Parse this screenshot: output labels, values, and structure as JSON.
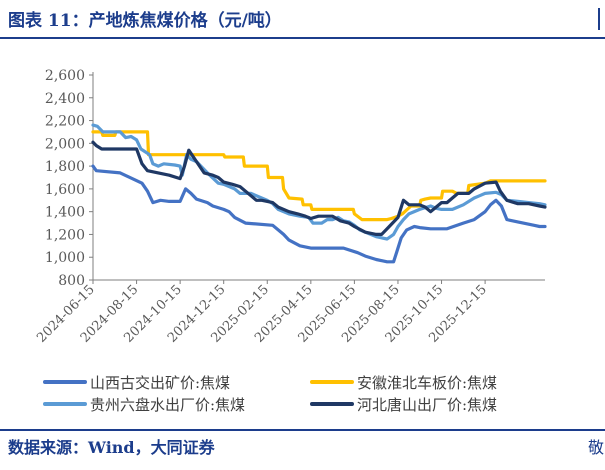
{
  "header": {
    "title": "图表 11：产地炼焦煤价格（元/吨）"
  },
  "footer": {
    "source": "数据来源：Wind，大同证券",
    "edge_char": "敬"
  },
  "chart_data": {
    "type": "line",
    "title": "产地炼焦煤价格（元/吨）",
    "ylim": [
      800,
      2600
    ],
    "yticks": [
      800,
      1000,
      1200,
      1400,
      1600,
      1800,
      2000,
      2200,
      2400,
      2600
    ],
    "ytick_labels": [
      "800",
      "1,000",
      "1,200",
      "1,400",
      "1,600",
      "1,800",
      "2,000",
      "2,200",
      "2,400",
      "2,600"
    ],
    "xlim": [
      0,
      40
    ],
    "xticks": [
      0,
      4,
      8,
      12,
      16,
      20,
      24,
      28,
      32,
      36
    ],
    "xtick_labels": [
      "2024-06-15",
      "2024-08-15",
      "2024-10-15",
      "2024-12-15",
      "2025-02-15",
      "2025-04-15",
      "2025-06-15",
      "2025-08-15",
      "2025-10-15",
      "2025-12-15"
    ],
    "colors": {
      "shanxi": "#4472c4",
      "anhui": "#ffc000",
      "guizhou": "#5b9bd5",
      "hebei": "#1f3864",
      "axis": "#7f7f7f",
      "text": "#595959"
    },
    "series": [
      {
        "key": "shanxi",
        "name": "山西古交出矿价:焦煤",
        "color": "#4472c4",
        "points": [
          [
            0,
            1800
          ],
          [
            0.3,
            1760
          ],
          [
            2.5,
            1740
          ],
          [
            4.5,
            1650
          ],
          [
            5,
            1580
          ],
          [
            5.5,
            1480
          ],
          [
            6.2,
            1500
          ],
          [
            7,
            1490
          ],
          [
            8,
            1490
          ],
          [
            8.5,
            1600
          ],
          [
            9,
            1560
          ],
          [
            9.5,
            1510
          ],
          [
            10.5,
            1480
          ],
          [
            11,
            1450
          ],
          [
            12,
            1420
          ],
          [
            12.5,
            1400
          ],
          [
            13,
            1350
          ],
          [
            14,
            1300
          ],
          [
            16.5,
            1280
          ],
          [
            17.5,
            1200
          ],
          [
            18,
            1150
          ],
          [
            19,
            1100
          ],
          [
            20,
            1080
          ],
          [
            22,
            1080
          ],
          [
            23,
            1080
          ],
          [
            24.3,
            1040
          ],
          [
            25,
            1010
          ],
          [
            26,
            980
          ],
          [
            27,
            960
          ],
          [
            27.6,
            960
          ],
          [
            27.9,
            1050
          ],
          [
            28.3,
            1170
          ],
          [
            28.8,
            1240
          ],
          [
            29.5,
            1270
          ],
          [
            30,
            1260
          ],
          [
            31,
            1250
          ],
          [
            32.5,
            1250
          ],
          [
            34,
            1300
          ],
          [
            35,
            1330
          ],
          [
            36,
            1400
          ],
          [
            36.5,
            1460
          ],
          [
            37,
            1500
          ],
          [
            37.5,
            1450
          ],
          [
            38,
            1330
          ],
          [
            39,
            1310
          ],
          [
            40,
            1290
          ],
          [
            40.5,
            1280
          ],
          [
            41,
            1270
          ],
          [
            41.5,
            1270
          ]
        ]
      },
      {
        "key": "anhui",
        "name": "安徽淮北车板价:焦煤",
        "color": "#ffc000",
        "points": [
          [
            0,
            2100
          ],
          [
            0.8,
            2100
          ],
          [
            0.9,
            2070
          ],
          [
            2,
            2070
          ],
          [
            2.1,
            2100
          ],
          [
            5,
            2100
          ],
          [
            5.1,
            1900
          ],
          [
            12,
            1900
          ],
          [
            12.1,
            1880
          ],
          [
            13.8,
            1880
          ],
          [
            13.9,
            1800
          ],
          [
            16,
            1800
          ],
          [
            16.1,
            1700
          ],
          [
            17.4,
            1700
          ],
          [
            17.5,
            1600
          ],
          [
            18,
            1520
          ],
          [
            19.2,
            1510
          ],
          [
            19.3,
            1460
          ],
          [
            20,
            1460
          ],
          [
            20.1,
            1420
          ],
          [
            23.9,
            1420
          ],
          [
            24,
            1380
          ],
          [
            24.7,
            1330
          ],
          [
            27,
            1330
          ],
          [
            27.4,
            1340
          ],
          [
            28,
            1360
          ],
          [
            28.4,
            1380
          ],
          [
            29.2,
            1450
          ],
          [
            30,
            1450
          ],
          [
            30.1,
            1500
          ],
          [
            30.5,
            1510
          ],
          [
            31,
            1520
          ],
          [
            32,
            1520
          ],
          [
            32.1,
            1580
          ],
          [
            33,
            1580
          ],
          [
            33.4,
            1560
          ],
          [
            34.4,
            1560
          ],
          [
            34.5,
            1630
          ],
          [
            36,
            1650
          ],
          [
            36.5,
            1670
          ],
          [
            40,
            1670
          ],
          [
            41.5,
            1670
          ]
        ]
      },
      {
        "key": "guizhou",
        "name": "贵州六盘水出厂价:焦煤",
        "color": "#5b9bd5",
        "points": [
          [
            0,
            2160
          ],
          [
            0.4,
            2150
          ],
          [
            0.9,
            2100
          ],
          [
            2.5,
            2100
          ],
          [
            3,
            2050
          ],
          [
            3.5,
            2060
          ],
          [
            4,
            2030
          ],
          [
            4.4,
            1950
          ],
          [
            5.2,
            1900
          ],
          [
            5.5,
            1820
          ],
          [
            6,
            1800
          ],
          [
            6.5,
            1820
          ],
          [
            7.5,
            1810
          ],
          [
            8,
            1800
          ],
          [
            8.2,
            1720
          ],
          [
            8.6,
            1900
          ],
          [
            9,
            1860
          ],
          [
            9.5,
            1840
          ],
          [
            10.5,
            1740
          ],
          [
            11.5,
            1650
          ],
          [
            12,
            1640
          ],
          [
            13,
            1600
          ],
          [
            13.5,
            1560
          ],
          [
            14.5,
            1560
          ],
          [
            16,
            1500
          ],
          [
            16.5,
            1470
          ],
          [
            17,
            1420
          ],
          [
            18,
            1380
          ],
          [
            19,
            1360
          ],
          [
            19.8,
            1350
          ],
          [
            20.2,
            1300
          ],
          [
            21,
            1300
          ],
          [
            21.5,
            1330
          ],
          [
            22,
            1330
          ],
          [
            22.5,
            1350
          ],
          [
            23,
            1320
          ],
          [
            23.5,
            1310
          ],
          [
            24,
            1280
          ],
          [
            24.5,
            1240
          ],
          [
            25,
            1220
          ],
          [
            26,
            1180
          ],
          [
            27,
            1160
          ],
          [
            27.6,
            1200
          ],
          [
            28,
            1270
          ],
          [
            28.5,
            1330
          ],
          [
            29,
            1380
          ],
          [
            30,
            1420
          ],
          [
            31,
            1450
          ],
          [
            31.5,
            1430
          ],
          [
            32,
            1420
          ],
          [
            33,
            1420
          ],
          [
            34,
            1460
          ],
          [
            35,
            1520
          ],
          [
            35.5,
            1540
          ],
          [
            36,
            1560
          ],
          [
            37,
            1570
          ],
          [
            37.5,
            1550
          ],
          [
            38,
            1500
          ],
          [
            39,
            1490
          ],
          [
            40,
            1480
          ],
          [
            41,
            1470
          ],
          [
            41.5,
            1460
          ]
        ]
      },
      {
        "key": "hebei",
        "name": "河北唐山出厂价:焦煤",
        "color": "#1f3864",
        "points": [
          [
            0,
            2010
          ],
          [
            0.3,
            1980
          ],
          [
            0.8,
            1950
          ],
          [
            4,
            1950
          ],
          [
            4.5,
            1820
          ],
          [
            5,
            1760
          ],
          [
            6,
            1740
          ],
          [
            7,
            1720
          ],
          [
            8,
            1690
          ],
          [
            8.4,
            1800
          ],
          [
            8.8,
            1940
          ],
          [
            9.5,
            1840
          ],
          [
            10.2,
            1740
          ],
          [
            11,
            1720
          ],
          [
            11.5,
            1700
          ],
          [
            12,
            1660
          ],
          [
            12.8,
            1640
          ],
          [
            13.5,
            1620
          ],
          [
            14,
            1580
          ],
          [
            14.5,
            1540
          ],
          [
            15,
            1500
          ],
          [
            15.5,
            1500
          ],
          [
            16,
            1490
          ],
          [
            16.5,
            1480
          ],
          [
            17,
            1440
          ],
          [
            18,
            1400
          ],
          [
            18.8,
            1380
          ],
          [
            19.5,
            1360
          ],
          [
            20,
            1340
          ],
          [
            20.7,
            1360
          ],
          [
            22,
            1360
          ],
          [
            22.7,
            1320
          ],
          [
            23.5,
            1300
          ],
          [
            24,
            1270
          ],
          [
            25,
            1220
          ],
          [
            26,
            1200
          ],
          [
            26.5,
            1200
          ],
          [
            27,
            1250
          ],
          [
            27.5,
            1300
          ],
          [
            28,
            1350
          ],
          [
            28.5,
            1500
          ],
          [
            29,
            1460
          ],
          [
            30,
            1460
          ],
          [
            30.5,
            1440
          ],
          [
            31,
            1400
          ],
          [
            31.5,
            1440
          ],
          [
            32,
            1480
          ],
          [
            32.5,
            1480
          ],
          [
            33,
            1520
          ],
          [
            33.5,
            1560
          ],
          [
            34.5,
            1560
          ],
          [
            35,
            1600
          ],
          [
            36,
            1650
          ],
          [
            37,
            1660
          ],
          [
            37.4,
            1580
          ],
          [
            38,
            1500
          ],
          [
            39,
            1470
          ],
          [
            40,
            1470
          ],
          [
            41,
            1450
          ],
          [
            41.5,
            1440
          ]
        ]
      }
    ],
    "legend": [
      "山西古交出矿价:焦煤",
      "安徽淮北车板价:焦煤",
      "贵州六盘水出厂价:焦煤",
      "河北唐山出厂价:焦煤"
    ],
    "legend_position": "bottom"
  }
}
